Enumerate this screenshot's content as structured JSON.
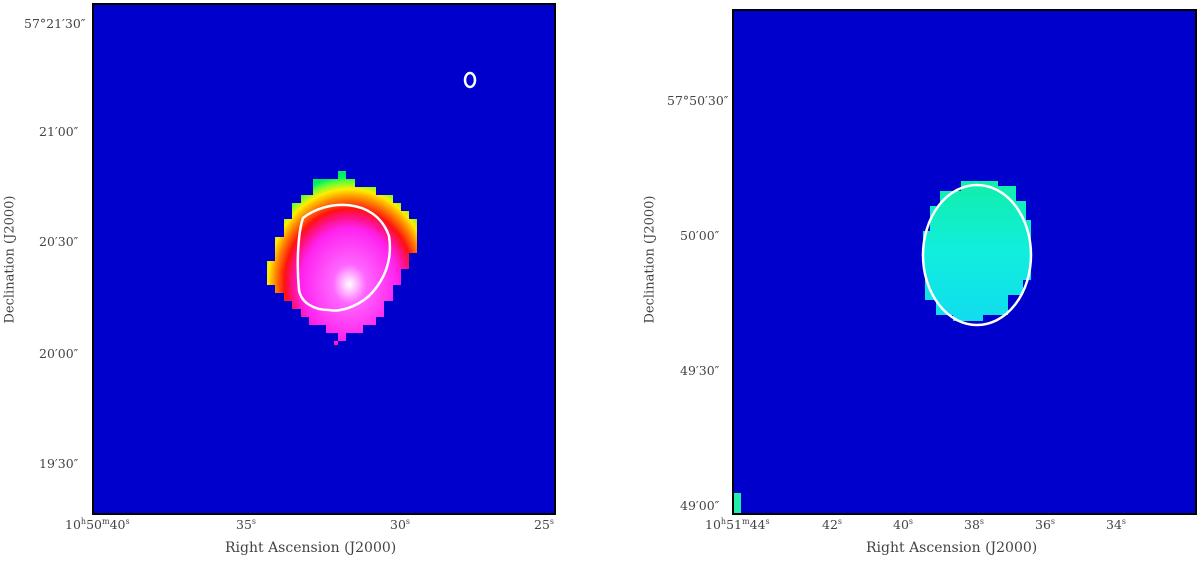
{
  "colors": {
    "background_blue": "#0000cc",
    "contour": "#ffffff",
    "frame": "#000000"
  },
  "left_panel": {
    "xlabel": "Right Ascension (J2000)",
    "ylabel": "Declination (J2000)",
    "xticks": [
      "10h50m40s",
      "35s",
      "30s",
      "25s"
    ],
    "yticks": [
      "57°21′30″",
      "21′00″",
      "20′30″",
      "20′00″",
      "19′30″"
    ],
    "colormap": "blue-green-yellow-red-magenta-white",
    "features": [
      "emission-blob",
      "contour",
      "small-contour"
    ]
  },
  "right_panel": {
    "xlabel": "Right Ascension (J2000)",
    "ylabel": "Declination (J2000)",
    "xticks": [
      "10h51m44s",
      "42s",
      "40s",
      "38s",
      "36s",
      "34s"
    ],
    "yticks": [
      "57°50′30″",
      "50′00″",
      "49′30″",
      "49′00″"
    ],
    "colormap": "blue-cyan",
    "features": [
      "cyan-blob",
      "contour"
    ]
  }
}
